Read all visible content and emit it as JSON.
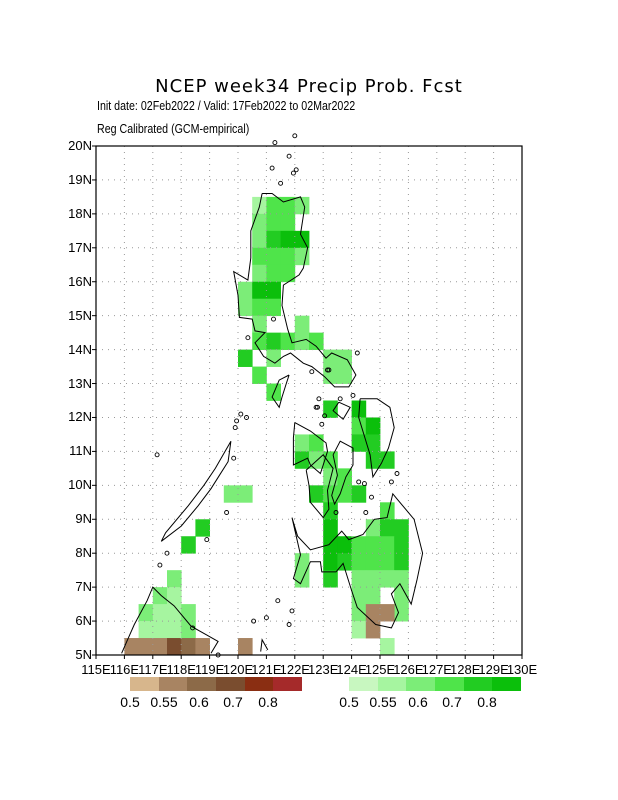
{
  "title": "NCEP week34 Precip Prob. Fcst",
  "subtitle_line1": "Init date: 02Feb2022 / Valid: 17Feb2022 to 02Mar2022",
  "subtitle_line2": "Reg Calibrated (GCM-empirical)",
  "map": {
    "lon_range": [
      115,
      130
    ],
    "lat_range": [
      5,
      20
    ],
    "y_ticks": [
      "5N",
      "6N",
      "7N",
      "8N",
      "9N",
      "10N",
      "11N",
      "12N",
      "13N",
      "14N",
      "15N",
      "16N",
      "17N",
      "18N",
      "19N",
      "20N"
    ],
    "x_ticks": [
      "115E",
      "116E",
      "117E",
      "118E",
      "119E",
      "120E",
      "121E",
      "122E",
      "123E",
      "124E",
      "125E",
      "126E",
      "127E",
      "128E",
      "129E",
      "130E"
    ],
    "grid": "dotted",
    "cell_size_deg": 0.5
  },
  "dry_colorbar": {
    "colors": [
      "#d7b68c",
      "#a88462",
      "#8c6a48",
      "#7a4d2f",
      "#8a2e12",
      "#a52a2a"
    ],
    "labels": [
      "0.5",
      "0.55",
      "0.6",
      "0.7",
      "0.8"
    ]
  },
  "wet_colorbar": {
    "colors": [
      "#c8f7c0",
      "#a6f5a0",
      "#7ced78",
      "#4fe44a",
      "#22cc22",
      "#0bbf0b"
    ],
    "labels": [
      "0.5",
      "0.55",
      "0.6",
      "0.7",
      "0.8"
    ]
  },
  "wet_cells": [
    [
      120.75,
      18.25,
      1
    ],
    [
      121.25,
      18.25,
      3
    ],
    [
      121.75,
      18.25,
      3
    ],
    [
      122.25,
      18.25,
      2
    ],
    [
      120.75,
      17.75,
      2
    ],
    [
      121.25,
      17.75,
      3
    ],
    [
      121.75,
      17.75,
      3
    ],
    [
      120.75,
      17.25,
      2
    ],
    [
      121.25,
      17.25,
      4
    ],
    [
      121.75,
      17.25,
      5
    ],
    [
      122.25,
      17.25,
      5
    ],
    [
      120.75,
      16.75,
      3
    ],
    [
      121.25,
      16.75,
      3
    ],
    [
      121.75,
      16.75,
      3
    ],
    [
      122.25,
      16.75,
      2
    ],
    [
      120.75,
      16.25,
      2
    ],
    [
      121.25,
      16.25,
      3
    ],
    [
      121.75,
      16.25,
      3
    ],
    [
      120.25,
      15.75,
      2
    ],
    [
      120.75,
      15.75,
      5
    ],
    [
      121.25,
      15.75,
      5
    ],
    [
      120.25,
      15.25,
      2
    ],
    [
      120.75,
      15.25,
      3
    ],
    [
      121.25,
      15.25,
      3
    ],
    [
      120.75,
      14.75,
      2
    ],
    [
      122.25,
      14.75,
      2
    ],
    [
      120.75,
      14.25,
      3
    ],
    [
      121.25,
      14.25,
      4
    ],
    [
      121.75,
      14.25,
      3
    ],
    [
      122.25,
      14.25,
      2
    ],
    [
      122.75,
      14.25,
      3
    ],
    [
      120.25,
      13.75,
      4
    ],
    [
      121.25,
      13.75,
      2
    ],
    [
      123.25,
      13.75,
      2
    ],
    [
      123.75,
      13.75,
      2
    ],
    [
      120.75,
      13.25,
      3
    ],
    [
      123.25,
      13.25,
      2
    ],
    [
      123.75,
      13.25,
      2
    ],
    [
      121.25,
      12.75,
      3
    ],
    [
      123.25,
      12.25,
      4
    ],
    [
      124.25,
      12.25,
      5
    ],
    [
      124.25,
      11.75,
      3
    ],
    [
      124.75,
      11.75,
      5
    ],
    [
      122.25,
      11.25,
      2
    ],
    [
      122.75,
      11.25,
      3
    ],
    [
      124.25,
      11.25,
      4
    ],
    [
      124.75,
      11.25,
      4
    ],
    [
      122.25,
      10.75,
      4
    ],
    [
      122.75,
      10.75,
      2
    ],
    [
      123.25,
      10.75,
      3
    ],
    [
      124.75,
      10.75,
      4
    ],
    [
      125.25,
      10.75,
      4
    ],
    [
      123.25,
      10.25,
      2
    ],
    [
      123.75,
      10.25,
      3
    ],
    [
      122.75,
      9.75,
      4
    ],
    [
      123.25,
      9.75,
      3
    ],
    [
      123.75,
      9.75,
      3
    ],
    [
      124.25,
      9.75,
      4
    ],
    [
      123.25,
      9.25,
      4
    ],
    [
      125.25,
      9.25,
      3
    ],
    [
      123.25,
      8.75,
      5
    ],
    [
      124.75,
      8.75,
      2
    ],
    [
      125.25,
      8.75,
      4
    ],
    [
      125.75,
      8.75,
      4
    ],
    [
      123.25,
      8.25,
      5
    ],
    [
      123.75,
      8.25,
      5
    ],
    [
      124.25,
      8.25,
      3
    ],
    [
      124.75,
      8.25,
      3
    ],
    [
      125.25,
      8.25,
      3
    ],
    [
      125.75,
      8.25,
      4
    ],
    [
      122.25,
      7.75,
      2
    ],
    [
      123.25,
      7.75,
      5
    ],
    [
      123.75,
      7.75,
      4
    ],
    [
      124.25,
      7.75,
      3
    ],
    [
      124.75,
      7.75,
      3
    ],
    [
      125.25,
      7.75,
      3
    ],
    [
      125.75,
      7.75,
      4
    ],
    [
      122.25,
      7.25,
      2
    ],
    [
      123.25,
      7.25,
      4
    ],
    [
      124.25,
      7.25,
      2
    ],
    [
      124.75,
      7.25,
      2
    ],
    [
      125.25,
      7.25,
      2
    ],
    [
      125.75,
      7.25,
      2
    ],
    [
      124.25,
      6.75,
      2
    ],
    [
      124.75,
      6.75,
      2
    ],
    [
      125.75,
      6.75,
      2
    ],
    [
      124.25,
      6.25,
      2
    ],
    [
      125.75,
      6.25,
      2
    ],
    [
      124.25,
      5.75,
      1
    ],
    [
      125.25,
      5.25,
      1
    ],
    [
      119.75,
      9.75,
      2
    ],
    [
      120.25,
      9.75,
      2
    ],
    [
      118.75,
      8.75,
      4
    ],
    [
      118.25,
      8.25,
      4
    ],
    [
      117.75,
      7.25,
      2
    ],
    [
      117.25,
      6.75,
      2
    ],
    [
      117.75,
      6.75,
      1
    ],
    [
      116.75,
      6.25,
      2
    ],
    [
      117.25,
      6.25,
      1
    ],
    [
      117.75,
      6.25,
      1
    ],
    [
      118.25,
      6.25,
      2
    ],
    [
      116.75,
      5.75,
      1
    ],
    [
      117.25,
      5.75,
      1
    ],
    [
      117.75,
      5.75,
      1
    ],
    [
      118.25,
      5.75,
      2
    ]
  ],
  "dry_cells": [
    [
      124.75,
      6.25,
      1
    ],
    [
      125.25,
      6.25,
      1
    ],
    [
      124.75,
      5.75,
      1
    ],
    [
      116.25,
      5.25,
      1
    ],
    [
      116.75,
      5.25,
      1
    ],
    [
      117.25,
      5.25,
      1
    ],
    [
      117.75,
      5.25,
      3
    ],
    [
      118.25,
      5.25,
      2
    ],
    [
      118.75,
      5.25,
      1
    ],
    [
      120.25,
      5.25,
      1
    ]
  ],
  "coastlines": [
    [
      [
        120.85,
        18.6
      ],
      [
        121.2,
        18.6
      ],
      [
        121.6,
        18.35
      ],
      [
        122.2,
        18.5
      ],
      [
        122.35,
        18.2
      ],
      [
        122.2,
        17.4
      ],
      [
        122.45,
        17.0
      ],
      [
        122.3,
        16.4
      ],
      [
        122.15,
        16.2
      ],
      [
        121.6,
        15.9
      ],
      [
        121.55,
        15.3
      ],
      [
        121.75,
        14.6
      ],
      [
        121.9,
        14.2
      ],
      [
        122.4,
        14.3
      ],
      [
        122.75,
        14.1
      ],
      [
        123.1,
        13.75
      ],
      [
        123.3,
        13.9
      ],
      [
        123.85,
        13.7
      ],
      [
        124.15,
        13.25
      ],
      [
        123.9,
        12.9
      ],
      [
        123.4,
        12.9
      ],
      [
        123.05,
        13.2
      ],
      [
        122.6,
        13.5
      ],
      [
        122.3,
        13.6
      ],
      [
        121.85,
        13.9
      ],
      [
        121.6,
        13.8
      ],
      [
        121.3,
        13.6
      ],
      [
        120.9,
        13.8
      ],
      [
        120.6,
        14.2
      ],
      [
        120.95,
        14.5
      ],
      [
        120.6,
        14.55
      ],
      [
        120.5,
        14.9
      ],
      [
        120.05,
        14.95
      ],
      [
        120.0,
        15.6
      ],
      [
        119.85,
        16.3
      ],
      [
        120.35,
        16.05
      ],
      [
        120.45,
        16.7
      ],
      [
        120.45,
        17.5
      ],
      [
        120.75,
        18.2
      ],
      [
        120.85,
        18.6
      ]
    ],
    [
      [
        121.8,
        13.25
      ],
      [
        121.45,
        13.1
      ],
      [
        121.2,
        12.6
      ],
      [
        121.45,
        12.3
      ],
      [
        121.55,
        12.6
      ],
      [
        121.7,
        13.0
      ],
      [
        121.8,
        13.25
      ]
    ],
    [
      [
        119.35,
        10.3
      ],
      [
        119.05,
        9.9
      ],
      [
        118.6,
        9.4
      ],
      [
        118.0,
        8.8
      ],
      [
        117.3,
        8.35
      ],
      [
        117.45,
        8.6
      ],
      [
        118.25,
        9.4
      ],
      [
        118.8,
        10.0
      ],
      [
        119.2,
        10.5
      ],
      [
        119.75,
        11.3
      ],
      [
        119.65,
        10.7
      ],
      [
        119.35,
        10.3
      ]
    ],
    [
      [
        122.0,
        11.85
      ],
      [
        122.55,
        11.6
      ],
      [
        123.1,
        11.25
      ],
      [
        123.15,
        11.0
      ],
      [
        123.0,
        10.6
      ],
      [
        122.9,
        10.35
      ],
      [
        122.55,
        10.6
      ],
      [
        122.45,
        10.8
      ],
      [
        121.95,
        10.6
      ],
      [
        121.95,
        11.4
      ],
      [
        122.0,
        11.85
      ]
    ],
    [
      [
        122.4,
        10.45
      ],
      [
        123.0,
        10.9
      ],
      [
        123.35,
        10.5
      ],
      [
        123.15,
        9.85
      ],
      [
        123.2,
        9.3
      ],
      [
        123.0,
        9.05
      ],
      [
        122.55,
        9.5
      ],
      [
        122.5,
        10.0
      ],
      [
        122.4,
        10.45
      ]
    ],
    [
      [
        123.35,
        10.9
      ],
      [
        123.6,
        11.3
      ],
      [
        124.05,
        11.1
      ],
      [
        124.05,
        10.6
      ],
      [
        123.8,
        10.25
      ],
      [
        123.6,
        9.75
      ],
      [
        123.4,
        9.45
      ],
      [
        123.3,
        9.7
      ],
      [
        123.5,
        10.3
      ],
      [
        123.35,
        10.9
      ]
    ],
    [
      [
        124.3,
        12.55
      ],
      [
        124.9,
        12.55
      ],
      [
        125.35,
        12.3
      ],
      [
        125.5,
        11.7
      ],
      [
        125.3,
        11.1
      ],
      [
        125.05,
        10.65
      ],
      [
        124.75,
        10.25
      ],
      [
        124.65,
        10.9
      ],
      [
        124.45,
        11.45
      ],
      [
        124.25,
        12.0
      ],
      [
        124.3,
        12.55
      ]
    ],
    [
      [
        123.55,
        12.45
      ],
      [
        123.95,
        12.3
      ],
      [
        123.7,
        11.95
      ],
      [
        123.35,
        12.2
      ],
      [
        123.55,
        12.45
      ]
    ],
    [
      [
        121.9,
        9.05
      ],
      [
        122.1,
        8.5
      ],
      [
        122.55,
        8.1
      ],
      [
        123.2,
        8.25
      ],
      [
        123.65,
        8.65
      ],
      [
        123.9,
        8.4
      ],
      [
        124.4,
        8.55
      ],
      [
        124.8,
        9.0
      ],
      [
        125.25,
        9.05
      ],
      [
        125.45,
        9.75
      ],
      [
        125.6,
        9.6
      ],
      [
        126.2,
        9.0
      ],
      [
        126.5,
        8.0
      ],
      [
        126.3,
        7.2
      ],
      [
        126.1,
        6.5
      ],
      [
        125.7,
        7.1
      ],
      [
        125.4,
        6.8
      ],
      [
        125.65,
        6.25
      ],
      [
        125.4,
        5.8
      ],
      [
        124.85,
        5.9
      ],
      [
        124.2,
        6.4
      ],
      [
        124.0,
        6.9
      ],
      [
        123.7,
        7.7
      ],
      [
        123.45,
        7.45
      ],
      [
        122.95,
        7.45
      ],
      [
        122.9,
        7.75
      ],
      [
        122.55,
        7.75
      ],
      [
        122.2,
        7.1
      ],
      [
        121.95,
        7.25
      ],
      [
        122.2,
        7.95
      ],
      [
        121.9,
        9.05
      ]
    ],
    [
      [
        115.9,
        5.05
      ],
      [
        116.35,
        5.9
      ],
      [
        116.8,
        6.6
      ],
      [
        117.0,
        7.0
      ],
      [
        117.3,
        6.75
      ],
      [
        117.75,
        6.45
      ],
      [
        118.35,
        5.85
      ],
      [
        119.3,
        5.4
      ],
      [
        119.05,
        5.05
      ]
    ],
    [
      [
        121.05,
        5.15
      ],
      [
        120.85,
        5.45
      ],
      [
        120.8,
        5.1
      ]
    ]
  ],
  "small_islands": [
    [
      121.8,
      19.7
    ],
    [
      121.95,
      19.2
    ],
    [
      122.05,
      19.3
    ],
    [
      121.5,
      18.9
    ],
    [
      121.2,
      19.35
    ],
    [
      122.0,
      20.3
    ],
    [
      121.3,
      20.1
    ],
    [
      120.1,
      12.1
    ],
    [
      119.95,
      11.9
    ],
    [
      119.9,
      11.7
    ],
    [
      120.3,
      12.0
    ],
    [
      119.85,
      10.8
    ],
    [
      122.75,
      12.3
    ],
    [
      122.85,
      12.55
    ],
    [
      123.6,
      12.55
    ],
    [
      124.2,
      13.9
    ],
    [
      124.05,
      12.65
    ],
    [
      122.8,
      12.3
    ],
    [
      122.6,
      13.35
    ],
    [
      123.2,
      13.4
    ],
    [
      117.15,
      10.9
    ],
    [
      117.5,
      8.0
    ],
    [
      117.25,
      7.65
    ],
    [
      118.4,
      5.8
    ],
    [
      119.3,
      5.0
    ],
    [
      120.55,
      6.0
    ],
    [
      121.8,
      5.9
    ],
    [
      121.4,
      6.6
    ],
    [
      121.9,
      6.3
    ],
    [
      121.0,
      6.1
    ],
    [
      118.9,
      8.4
    ],
    [
      119.6,
      9.2
    ],
    [
      123.15,
      13.4
    ],
    [
      122.95,
      11.8
    ],
    [
      123.05,
      12.05
    ],
    [
      124.25,
      10.1
    ],
    [
      124.45,
      10.05
    ],
    [
      125.4,
      10.1
    ],
    [
      125.6,
      10.35
    ],
    [
      124.5,
      9.2
    ],
    [
      124.7,
      9.65
    ],
    [
      123.45,
      9.2
    ],
    [
      120.35,
      14.35
    ],
    [
      121.25,
      14.9
    ]
  ]
}
